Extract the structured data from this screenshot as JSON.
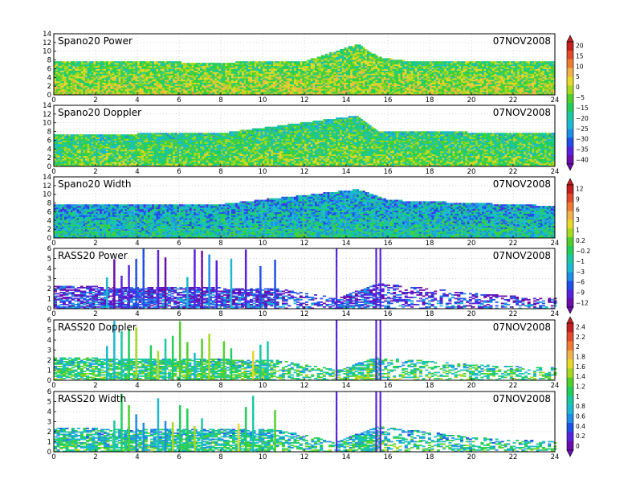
{
  "colors": {
    "ramp": [
      "#6a0dad",
      "#5522e0",
      "#1f4fe8",
      "#1f8de8",
      "#1bb8d4",
      "#18c9a2",
      "#1fcf5a",
      "#4fd12a",
      "#a8d91e",
      "#e8d82a",
      "#f0b24a",
      "#f07a32",
      "#e04a2a",
      "#c41e1e"
    ],
    "frame": "#000000",
    "grid": "#aaaaaa"
  },
  "chart_data": [
    {
      "type": "heatmap",
      "title": "Spano20  Power",
      "date": "07NOV2008",
      "xlim": [
        0,
        24
      ],
      "ylim": [
        0,
        14
      ],
      "xticks": [
        0,
        2,
        4,
        6,
        8,
        10,
        12,
        14,
        16,
        18,
        20,
        22,
        24
      ],
      "yticks": [
        0,
        2,
        4,
        6,
        8,
        10,
        12,
        14
      ],
      "top_height": [
        {
          "t": 0,
          "h": 7.5
        },
        {
          "t": 4,
          "h": 7.4
        },
        {
          "t": 8,
          "h": 7.3
        },
        {
          "t": 12,
          "h": 7.6
        },
        {
          "t": 14.5,
          "h": 11.5
        },
        {
          "t": 15.5,
          "h": 8.5
        },
        {
          "t": 17,
          "h": 7.5
        },
        {
          "t": 24,
          "h": 7.4
        }
      ],
      "dominant_level": 0.62
    },
    {
      "type": "heatmap",
      "title": "Spano20  Doppler",
      "date": "07NOV2008",
      "xlim": [
        0,
        24
      ],
      "ylim": [
        0,
        14
      ],
      "xticks": [
        0,
        2,
        4,
        6,
        8,
        10,
        12,
        14,
        16,
        18,
        20,
        22,
        24
      ],
      "yticks": [
        0,
        2,
        4,
        6,
        8,
        10,
        12,
        14
      ],
      "top_height": [
        {
          "t": 0,
          "h": 7.2
        },
        {
          "t": 8,
          "h": 7.5
        },
        {
          "t": 14.5,
          "h": 11.5
        },
        {
          "t": 15.5,
          "h": 8.0
        },
        {
          "t": 24,
          "h": 7.4
        }
      ],
      "dominant_level": 0.55
    },
    {
      "type": "heatmap",
      "title": "Spano20  Width",
      "date": "07NOV2008",
      "xlim": [
        0,
        24
      ],
      "ylim": [
        0,
        14
      ],
      "xticks": [
        0,
        2,
        4,
        6,
        8,
        10,
        12,
        14,
        16,
        18,
        20,
        22,
        24
      ],
      "yticks": [
        0,
        2,
        4,
        6,
        8,
        10,
        12,
        14
      ],
      "top_height": [
        {
          "t": 0,
          "h": 7.5
        },
        {
          "t": 8,
          "h": 7.6
        },
        {
          "t": 14.5,
          "h": 11.0
        },
        {
          "t": 16,
          "h": 8.5
        },
        {
          "t": 24,
          "h": 7.2
        }
      ],
      "dominant_level": 0.4
    },
    {
      "type": "heatmap",
      "title": "RASS20  Power",
      "date": "07NOV2008",
      "xlim": [
        0,
        24
      ],
      "ylim": [
        0,
        6
      ],
      "xticks": [
        0,
        2,
        4,
        6,
        8,
        10,
        12,
        14,
        16,
        18,
        20,
        22,
        24
      ],
      "yticks": [
        0,
        1,
        2,
        3,
        4,
        5,
        6
      ],
      "top_height": [
        {
          "t": 0,
          "h": 2.2
        },
        {
          "t": 10.5,
          "h": 2.0
        },
        {
          "t": 13.5,
          "h": 1.0
        },
        {
          "t": 15.5,
          "h": 2.5
        },
        {
          "t": 20,
          "h": 1.5
        },
        {
          "t": 24,
          "h": 1.0
        }
      ],
      "dominant_level": 0.2
    },
    {
      "type": "heatmap",
      "title": "RASS20  Doppler",
      "date": "07NOV2008",
      "xlim": [
        0,
        24
      ],
      "ylim": [
        0,
        6
      ],
      "xticks": [
        0,
        2,
        4,
        6,
        8,
        10,
        12,
        14,
        16,
        18,
        20,
        22,
        24
      ],
      "yticks": [
        0,
        1,
        2,
        3,
        4,
        5,
        6
      ],
      "top_height": [
        {
          "t": 0,
          "h": 2.2
        },
        {
          "t": 10.5,
          "h": 2.0
        },
        {
          "t": 13.5,
          "h": 1.0
        },
        {
          "t": 15.5,
          "h": 2.3
        },
        {
          "t": 20,
          "h": 1.5
        },
        {
          "t": 24,
          "h": 1.2
        }
      ],
      "dominant_level": 0.5
    },
    {
      "type": "heatmap",
      "title": "RASS20  Width",
      "date": "07NOV2008",
      "xlim": [
        0,
        24
      ],
      "ylim": [
        0,
        6
      ],
      "xticks": [
        0,
        2,
        4,
        6,
        8,
        10,
        12,
        14,
        16,
        18,
        20,
        22,
        24
      ],
      "yticks": [
        0,
        1,
        2,
        3,
        4,
        5,
        6
      ],
      "top_height": [
        {
          "t": 0,
          "h": 2.3
        },
        {
          "t": 10.5,
          "h": 2.2
        },
        {
          "t": 13.5,
          "h": 1.0
        },
        {
          "t": 15.5,
          "h": 2.5
        },
        {
          "t": 20,
          "h": 1.4
        },
        {
          "t": 24,
          "h": 1.0
        }
      ],
      "dominant_level": 0.45
    }
  ],
  "colorbars": [
    {
      "labels": [
        "20",
        "15",
        "10",
        "5",
        "0",
        "−5",
        "−15",
        "−20",
        "−25",
        "−30",
        "−35",
        "−40"
      ]
    },
    {
      "labels": [
        "12",
        "9",
        "6",
        "3",
        "1",
        "0.2",
        "−0.2",
        "−1",
        "−3",
        "−6",
        "−9",
        "−12"
      ]
    },
    {
      "labels": [
        "2.4",
        "2.2",
        "2",
        "1.8",
        "1.6",
        "1.4",
        "1.2",
        "1",
        "0.8",
        "0.6",
        "0.4",
        "0.2",
        "0"
      ]
    }
  ]
}
